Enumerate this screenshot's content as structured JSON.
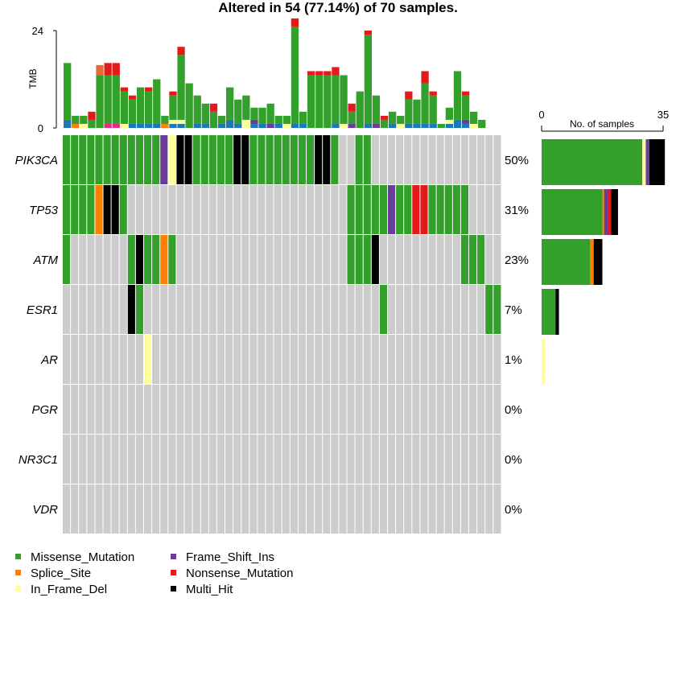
{
  "chart_data": {
    "type": "oncoplot",
    "title": "Altered in 54 (77.14%) of 70 samples.",
    "n_samples": 70,
    "tmb": {
      "label": "TMB",
      "ylim": [
        0,
        24
      ],
      "ticks": [
        "0",
        "24"
      ]
    },
    "side": {
      "label": "No. of samples",
      "xlim": [
        0,
        35
      ],
      "ticks": [
        "0",
        "35"
      ]
    },
    "colors": {
      "Missense_Mutation": "#33a02c",
      "Splice_Site": "#ff7f00",
      "In_Frame_Del": "#ffff99",
      "Frame_Shift_Ins": "#6a3d9a",
      "Nonsense_Mutation": "#e31a1c",
      "Multi_Hit": "#000000",
      "extra_blue": "#1f78b4",
      "extra_pink": "#e7298a",
      "extra_orange": "#e66c37",
      "none": "#cccccc"
    },
    "legend": [
      {
        "key": "Missense_Mutation",
        "label": "Missense_Mutation"
      },
      {
        "key": "Splice_Site",
        "label": "Splice_Site"
      },
      {
        "key": "In_Frame_Del",
        "label": "In_Frame_Del"
      },
      {
        "key": "Frame_Shift_Ins",
        "label": "Frame_Shift_Ins"
      },
      {
        "key": "Nonsense_Mutation",
        "label": "Nonsense_Mutation"
      },
      {
        "key": "Multi_Hit",
        "label": "Multi_Hit"
      }
    ],
    "genes": [
      {
        "name": "PIK3CA",
        "pct": "50%",
        "bars": {
          "Missense_Mutation": 29,
          "In_Frame_Del": 1,
          "Frame_Shift_Ins": 1,
          "Multi_Hit": 4.5
        },
        "cells": {
          "Missense_Mutation": [
            0,
            1,
            2,
            3,
            4,
            5,
            6,
            7,
            8,
            9,
            10,
            11,
            12,
            16,
            17,
            18,
            19,
            20,
            21,
            23,
            24,
            25,
            26,
            27,
            28,
            29,
            30,
            31,
            32,
            33,
            36,
            37
          ],
          "Frame_Shift_Ins": [
            12
          ],
          "In_Frame_Del": [
            13
          ],
          "Multi_Hit": [
            14,
            15,
            21,
            22,
            31,
            32
          ]
        }
      },
      {
        "name": "TP53",
        "pct": "31%",
        "bars": {
          "Missense_Mutation": 17.5,
          "Splice_Site": 0.5,
          "Frame_Shift_Ins": 1,
          "Nonsense_Mutation": 1,
          "Multi_Hit": 2
        },
        "cells": {
          "Missense_Mutation": [
            0,
            1,
            2,
            3,
            4,
            5,
            6,
            7,
            35,
            36,
            37,
            38,
            39,
            40,
            41,
            42,
            43,
            44,
            45,
            46,
            47,
            48,
            49
          ],
          "Splice_Site": [
            4
          ],
          "Multi_Hit": [
            5,
            6
          ],
          "Frame_Shift_Ins": [
            40
          ],
          "Nonsense_Mutation": [
            43,
            44
          ]
        }
      },
      {
        "name": "ATM",
        "pct": "23%",
        "bars": {
          "Missense_Mutation": 14,
          "Splice_Site": 1,
          "Multi_Hit": 2.5
        },
        "cells": {
          "Missense_Mutation": [
            0,
            8,
            9,
            10,
            11,
            12,
            13,
            35,
            36,
            37,
            38,
            49,
            50,
            51
          ],
          "Multi_Hit": [
            9,
            38
          ],
          "Splice_Site": [
            12
          ]
        }
      },
      {
        "name": "ESR1",
        "pct": "7%",
        "bars": {
          "Missense_Mutation": 4,
          "Multi_Hit": 1
        },
        "cells": {
          "Missense_Mutation": [
            8,
            9,
            39,
            52,
            53
          ],
          "Multi_Hit": [
            8
          ]
        }
      },
      {
        "name": "AR",
        "pct": "1%",
        "bars": {
          "In_Frame_Del": 1
        },
        "cells": {
          "In_Frame_Del": [
            10
          ]
        }
      },
      {
        "name": "PGR",
        "pct": "0%",
        "bars": {},
        "cells": {}
      },
      {
        "name": "NR3C1",
        "pct": "0%",
        "bars": {},
        "cells": {}
      },
      {
        "name": "VDR",
        "pct": "0%",
        "bars": {},
        "cells": {}
      }
    ],
    "tmb_values": [
      [
        [
          "Missense_Mutation",
          14
        ],
        [
          "extra_blue",
          2
        ]
      ],
      [
        [
          "Missense_Mutation",
          2
        ],
        [
          "Splice_Site",
          1
        ]
      ],
      [
        [
          "Missense_Mutation",
          2
        ],
        [
          "In_Frame_Del",
          1
        ]
      ],
      [
        [
          "Missense_Mutation",
          2
        ],
        [
          "Nonsense_Mutation",
          2
        ]
      ],
      [
        [
          "Missense_Mutation",
          13
        ],
        [
          "extra_orange",
          2.5
        ]
      ],
      [
        [
          "Missense_Mutation",
          12
        ],
        [
          "Nonsense_Mutation",
          3
        ],
        [
          "extra_pink",
          1
        ]
      ],
      [
        [
          "Missense_Mutation",
          12
        ],
        [
          "Nonsense_Mutation",
          3
        ],
        [
          "extra_pink",
          1
        ]
      ],
      [
        [
          "Missense_Mutation",
          8
        ],
        [
          "Nonsense_Mutation",
          1
        ],
        [
          "In_Frame_Del",
          1
        ]
      ],
      [
        [
          "Missense_Mutation",
          6
        ],
        [
          "Nonsense_Mutation",
          1
        ],
        [
          "extra_blue",
          1
        ]
      ],
      [
        [
          "Missense_Mutation",
          9
        ],
        [
          "extra_blue",
          1
        ]
      ],
      [
        [
          "Missense_Mutation",
          8
        ],
        [
          "Nonsense_Mutation",
          1
        ],
        [
          "extra_blue",
          1
        ]
      ],
      [
        [
          "Missense_Mutation",
          11
        ],
        [
          "extra_blue",
          1
        ]
      ],
      [
        [
          "Missense_Mutation",
          2
        ],
        [
          "Splice_Site",
          1
        ]
      ],
      [
        [
          "Missense_Mutation",
          6
        ],
        [
          "Nonsense_Mutation",
          1
        ],
        [
          "In_Frame_Del",
          1
        ],
        [
          "extra_blue",
          1
        ]
      ],
      [
        [
          "Missense_Mutation",
          16
        ],
        [
          "Nonsense_Mutation",
          2
        ],
        [
          "In_Frame_Del",
          1
        ],
        [
          "extra_blue",
          1
        ]
      ],
      [
        [
          "Missense_Mutation",
          11
        ]
      ],
      [
        [
          "Missense_Mutation",
          7
        ],
        [
          "extra_blue",
          1
        ]
      ],
      [
        [
          "Missense_Mutation",
          5
        ],
        [
          "extra_blue",
          1
        ]
      ],
      [
        [
          "Missense_Mutation",
          4
        ],
        [
          "Nonsense_Mutation",
          2
        ]
      ],
      [
        [
          "Missense_Mutation",
          2
        ],
        [
          "extra_blue",
          1
        ]
      ],
      [
        [
          "Missense_Mutation",
          8
        ],
        [
          "extra_blue",
          2
        ]
      ],
      [
        [
          "Missense_Mutation",
          6
        ],
        [
          "extra_blue",
          1
        ]
      ],
      [
        [
          "Missense_Mutation",
          6
        ],
        [
          "In_Frame_Del",
          2
        ]
      ],
      [
        [
          "Missense_Mutation",
          3
        ],
        [
          "Frame_Shift_Ins",
          1
        ],
        [
          "extra_blue",
          1
        ]
      ],
      [
        [
          "Missense_Mutation",
          4
        ],
        [
          "extra_blue",
          1
        ]
      ],
      [
        [
          "Missense_Mutation",
          5
        ],
        [
          "Frame_Shift_Ins",
          1
        ]
      ],
      [
        [
          "Missense_Mutation",
          2
        ],
        [
          "extra_blue",
          1
        ]
      ],
      [
        [
          "Missense_Mutation",
          2
        ],
        [
          "In_Frame_Del",
          1
        ]
      ],
      [
        [
          "Missense_Mutation",
          24
        ],
        [
          "Nonsense_Mutation",
          2
        ],
        [
          "extra_blue",
          1
        ]
      ],
      [
        [
          "Missense_Mutation",
          3
        ],
        [
          "extra_blue",
          1
        ]
      ],
      [
        [
          "Missense_Mutation",
          13
        ],
        [
          "Nonsense_Mutation",
          1
        ]
      ],
      [
        [
          "Missense_Mutation",
          13
        ],
        [
          "Nonsense_Mutation",
          1
        ]
      ],
      [
        [
          "Missense_Mutation",
          13
        ],
        [
          "Nonsense_Mutation",
          1
        ]
      ],
      [
        [
          "Missense_Mutation",
          12
        ],
        [
          "Nonsense_Mutation",
          2
        ],
        [
          "extra_blue",
          1
        ]
      ],
      [
        [
          "Missense_Mutation",
          12
        ],
        [
          "In_Frame_Del",
          1
        ]
      ],
      [
        [
          "Missense_Mutation",
          3
        ],
        [
          "Nonsense_Mutation",
          2
        ],
        [
          "Frame_Shift_Ins",
          1
        ]
      ],
      [
        [
          "Missense_Mutation",
          9
        ]
      ],
      [
        [
          "Missense_Mutation",
          22
        ],
        [
          "Nonsense_Mutation",
          1
        ],
        [
          "extra_blue",
          1
        ]
      ],
      [
        [
          "Missense_Mutation",
          7
        ],
        [
          "Frame_Shift_Ins",
          1
        ]
      ],
      [
        [
          "Missense_Mutation",
          2
        ],
        [
          "Nonsense_Mutation",
          1
        ]
      ],
      [
        [
          "Missense_Mutation",
          3
        ],
        [
          "extra_blue",
          1
        ]
      ],
      [
        [
          "Missense_Mutation",
          2
        ],
        [
          "In_Frame_Del",
          1
        ]
      ],
      [
        [
          "Missense_Mutation",
          6
        ],
        [
          "Nonsense_Mutation",
          2
        ],
        [
          "extra_blue",
          1
        ]
      ],
      [
        [
          "Missense_Mutation",
          6
        ],
        [
          "extra_blue",
          1
        ]
      ],
      [
        [
          "Missense_Mutation",
          10
        ],
        [
          "Nonsense_Mutation",
          3
        ],
        [
          "extra_blue",
          1
        ]
      ],
      [
        [
          "Missense_Mutation",
          7
        ],
        [
          "Nonsense_Mutation",
          1
        ],
        [
          "extra_blue",
          1
        ]
      ],
      [
        [
          "Missense_Mutation",
          1
        ]
      ],
      [
        [
          "Missense_Mutation",
          3
        ],
        [
          "In_Frame_Del",
          1
        ],
        [
          "extra_blue",
          1
        ]
      ],
      [
        [
          "Missense_Mutation",
          12
        ],
        [
          "extra_blue",
          2
        ]
      ],
      [
        [
          "Missense_Mutation",
          6
        ],
        [
          "Nonsense_Mutation",
          1
        ],
        [
          "Frame_Shift_Ins",
          1
        ],
        [
          "extra_blue",
          1
        ]
      ],
      [
        [
          "Missense_Mutation",
          3
        ],
        [
          "In_Frame_Del",
          1
        ]
      ],
      [
        [
          "Missense_Mutation",
          2
        ]
      ]
    ]
  }
}
